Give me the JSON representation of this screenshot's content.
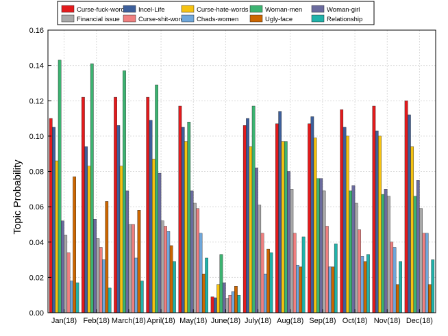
{
  "chart_data": {
    "type": "bar",
    "title": "",
    "xlabel": "",
    "ylabel": "Topic Probability",
    "ylim": [
      0,
      0.16
    ],
    "yticks": [
      "0.00",
      "0.02",
      "0.04",
      "0.06",
      "0.08",
      "0.10",
      "0.12",
      "0.14",
      "0.16"
    ],
    "grid": true,
    "legend_position": "top",
    "categories": [
      "Jan(18)",
      "Feb(18)",
      "March(18)",
      "April(18)",
      "May(18)",
      "June(18)",
      "July(18)",
      "Aug(18)",
      "Sep(18)",
      "Oct(18)",
      "Nov(18)",
      "Dec(18)"
    ],
    "series": [
      {
        "name": "Curse-fuck-words",
        "color": "#e31a1c",
        "values": [
          0.11,
          0.122,
          0.122,
          0.122,
          0.117,
          0.009,
          0.106,
          0.107,
          0.107,
          0.115,
          0.117,
          0.12
        ]
      },
      {
        "name": "Incel-Life",
        "color": "#3d5f9b",
        "values": [
          0.105,
          0.094,
          0.106,
          0.109,
          0.105,
          0.0085,
          0.11,
          0.114,
          0.111,
          0.105,
          0.103,
          0.112
        ]
      },
      {
        "name": "Curse-hate-words",
        "color": "#f5c211",
        "values": [
          0.086,
          0.083,
          0.083,
          0.087,
          0.097,
          0.016,
          0.094,
          0.097,
          0.099,
          0.1,
          0.1,
          0.094
        ]
      },
      {
        "name": "Woman-men",
        "color": "#3cb371",
        "values": [
          0.143,
          0.141,
          0.137,
          0.129,
          0.108,
          0.033,
          0.117,
          0.097,
          0.076,
          0.069,
          0.067,
          0.066
        ]
      },
      {
        "name": "Woman-girl",
        "color": "#6b6b9e",
        "values": [
          0.052,
          0.053,
          0.069,
          0.079,
          0.069,
          0.017,
          0.082,
          0.08,
          0.076,
          0.072,
          0.07,
          0.075
        ]
      },
      {
        "name": "Financial issue",
        "color": "#a9a9a9",
        "values": [
          0.044,
          0.042,
          0.05,
          0.052,
          0.062,
          0.008,
          0.061,
          0.07,
          0.069,
          0.062,
          0.066,
          0.059
        ]
      },
      {
        "name": "Curse-shit-words",
        "color": "#f08080",
        "values": [
          0.034,
          0.037,
          0.05,
          0.049,
          0.059,
          0.01,
          0.045,
          0.045,
          0.049,
          0.047,
          0.04,
          0.045
        ]
      },
      {
        "name": "Chads-women",
        "color": "#6fa8dc",
        "values": [
          0.018,
          0.03,
          0.031,
          0.046,
          0.045,
          0.012,
          0.022,
          0.027,
          0.026,
          0.032,
          0.037,
          0.045
        ]
      },
      {
        "name": "Ugly-face",
        "color": "#cc6600",
        "values": [
          0.077,
          0.063,
          0.058,
          0.038,
          0.022,
          0.015,
          0.036,
          0.026,
          0.026,
          0.029,
          0.016,
          0.016
        ]
      },
      {
        "name": "Relationship",
        "color": "#20b2aa",
        "values": [
          0.017,
          0.014,
          0.018,
          0.029,
          0.031,
          0.01,
          0.034,
          0.043,
          0.039,
          0.033,
          0.029,
          0.03
        ]
      }
    ]
  }
}
